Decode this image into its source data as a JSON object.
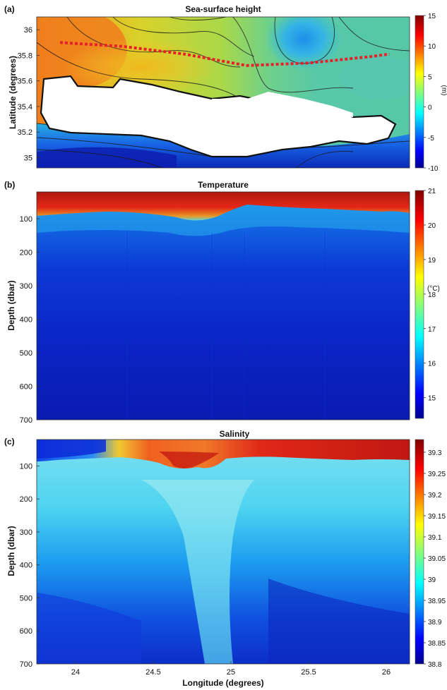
{
  "chart_data": [
    {
      "type": "heatmap",
      "panel_label": "(a)",
      "title": "Sea-surface height",
      "ylabel": "Latitude (degrees)",
      "colorbar_label": "(m)",
      "xlim": [
        23.75,
        26.15
      ],
      "ylim": [
        34.92,
        36.1
      ],
      "y_ticks": [
        35,
        35.2,
        35.4,
        35.6,
        35.8,
        36
      ],
      "y_tick_labels": [
        "35",
        "35.2",
        "35.4",
        "35.6",
        "35.8",
        "36"
      ],
      "colorbar_range": [
        -10,
        15
      ],
      "colorbar_ticks": [
        -10,
        -5,
        0,
        5,
        10,
        15
      ],
      "colorbar_tick_labels": [
        "-10",
        "-5",
        "0",
        "5",
        "10",
        "15"
      ],
      "transect_line_color": "#e8202a",
      "transect": [
        [
          23.9,
          35.9
        ],
        [
          24.3,
          35.87
        ],
        [
          24.7,
          35.81
        ],
        [
          25.1,
          35.72
        ],
        [
          25.5,
          35.74
        ],
        [
          25.9,
          35.79
        ],
        [
          26.02,
          35.81
        ]
      ]
    },
    {
      "type": "heatmap",
      "panel_label": "(b)",
      "title": "Temperature",
      "ylabel": "Depth (dbar)",
      "colorbar_label": "(°C)",
      "xlim": [
        23.75,
        26.15
      ],
      "ylim": [
        700,
        20
      ],
      "y_ticks": [
        100,
        200,
        300,
        400,
        500,
        600,
        700
      ],
      "y_tick_labels": [
        "100",
        "200",
        "300",
        "400",
        "500",
        "600",
        "700"
      ],
      "colorbar_range": [
        14.4,
        21
      ],
      "colorbar_ticks": [
        15,
        16,
        17,
        18,
        19,
        20,
        21
      ],
      "colorbar_tick_labels": [
        "15",
        "16",
        "17",
        "18",
        "19",
        "20",
        "21"
      ]
    },
    {
      "type": "heatmap",
      "panel_label": "(c)",
      "title": "Salinity",
      "ylabel": "Depth (dbar)",
      "xlabel": "Longitude (degrees)",
      "xlim": [
        23.75,
        26.15
      ],
      "ylim": [
        700,
        20
      ],
      "x_ticks": [
        24,
        24.5,
        25,
        25.5,
        26
      ],
      "x_tick_labels": [
        "24",
        "24.5",
        "25",
        "25.5",
        "26"
      ],
      "y_ticks": [
        100,
        200,
        300,
        400,
        500,
        600,
        700
      ],
      "y_tick_labels": [
        "100",
        "200",
        "300",
        "400",
        "500",
        "600",
        "700"
      ],
      "colorbar_range": [
        38.8,
        39.33
      ],
      "colorbar_ticks": [
        38.8,
        38.85,
        38.9,
        38.95,
        39,
        39.05,
        39.1,
        39.15,
        39.2,
        39.25,
        39.3
      ],
      "colorbar_tick_labels": [
        "38.8",
        "38.85",
        "38.9",
        "38.95",
        "39",
        "39.05",
        "39.1",
        "39.15",
        "39.2",
        "39.25",
        "39.3"
      ]
    }
  ]
}
